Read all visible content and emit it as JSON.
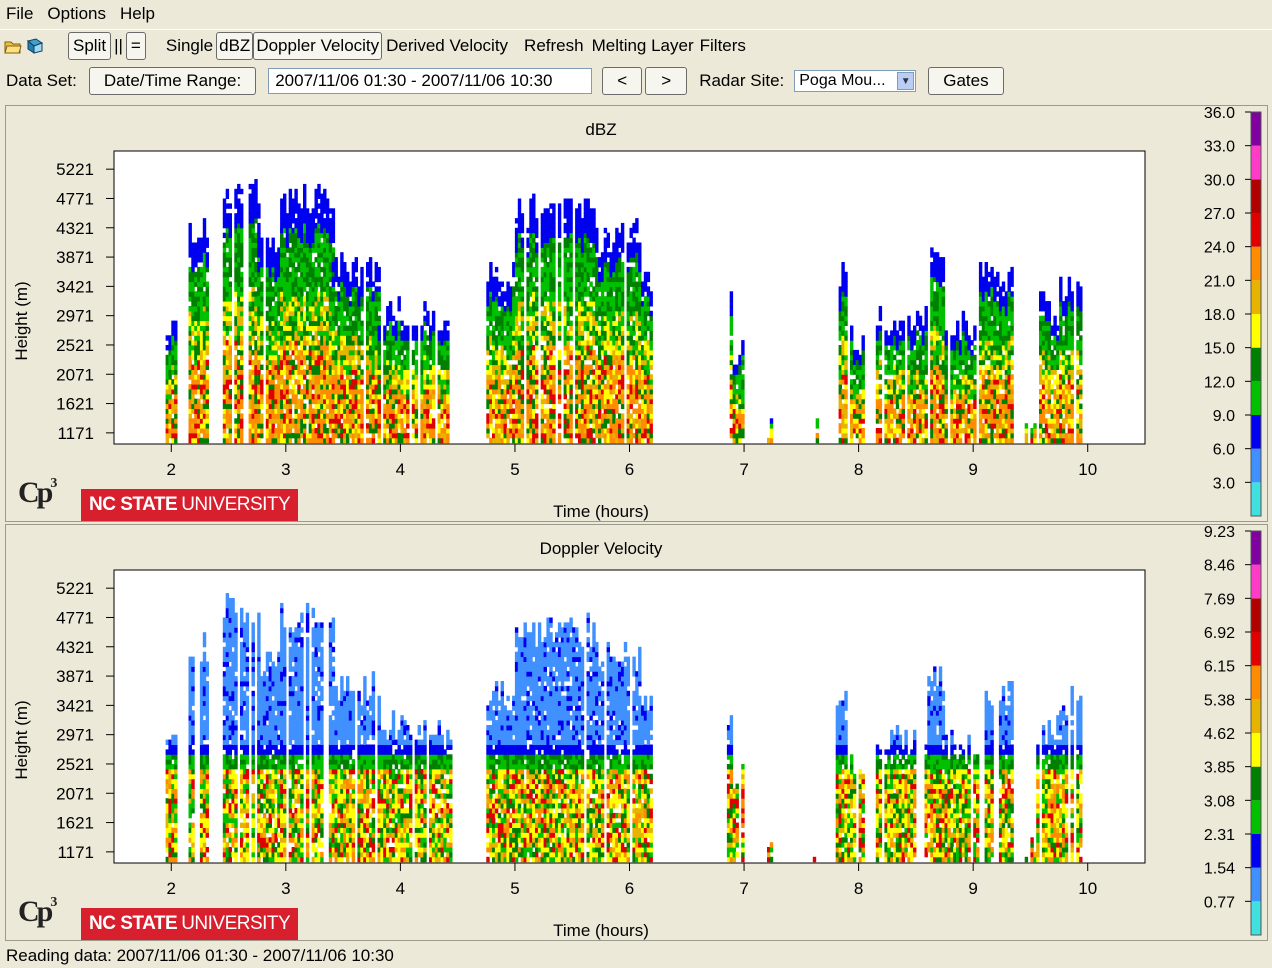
{
  "menu": [
    "File",
    "Options",
    "Help"
  ],
  "toolbar": {
    "split": "Split",
    "pause": "||",
    "equal": "=",
    "single": "Single",
    "dbz": "dBZ",
    "doppler": "Doppler Velocity",
    "derived": "Derived Velocity",
    "refresh": "Refresh",
    "melting": "Melting Layer",
    "filters": "Filters"
  },
  "dataset": {
    "label": "Data Set:",
    "range_button": "Date/Time Range:",
    "range_value": "2007/11/06 01:30 - 2007/11/06 10:30",
    "prev": "<",
    "next": ">",
    "radar_label": "Radar Site:",
    "radar_value": "Poga Mou...",
    "gates": "Gates"
  },
  "logos": {
    "cp": "Cp",
    "cp_sup": "3",
    "ncsu_bold": "NC STATE",
    "ncsu_rest": "UNIVERSITY"
  },
  "status": "Reading data: 2007/11/06 01:30 - 2007/11/06 10:30",
  "colors": {
    "scale": [
      "#40e0e0",
      "#4090ff",
      "#0000f0",
      "#00c000",
      "#008000",
      "#ffff00",
      "#e6b400",
      "#ff8c00",
      "#e00000",
      "#b00000",
      "#ff3cc8",
      "#8000a0"
    ]
  },
  "chart_data": [
    {
      "type": "heatmap",
      "title": "dBZ",
      "xlabel": "Time (hours)",
      "ylabel": "Height (m)",
      "xticks": [
        2,
        3,
        4,
        5,
        6,
        7,
        8,
        9,
        10
      ],
      "yticks": [
        1171,
        1621,
        2071,
        2521,
        2971,
        3421,
        3871,
        4321,
        4771,
        5221
      ],
      "xlim": [
        1.5,
        10.5
      ],
      "ylim": [
        1000,
        5500
      ],
      "colorbar": [
        "3.0",
        "6.0",
        "9.0",
        "12.0",
        "15.0",
        "18.0",
        "21.0",
        "24.0",
        "27.0",
        "30.0",
        "33.0",
        "36.0"
      ]
    },
    {
      "type": "heatmap",
      "title": "Doppler Velocity",
      "xlabel": "Time (hours)",
      "ylabel": "Height (m)",
      "xticks": [
        2,
        3,
        4,
        5,
        6,
        7,
        8,
        9,
        10
      ],
      "yticks": [
        1171,
        1621,
        2071,
        2521,
        2971,
        3421,
        3871,
        4321,
        4771,
        5221
      ],
      "xlim": [
        1.5,
        10.5
      ],
      "ylim": [
        1000,
        5500
      ],
      "colorbar": [
        "0.77",
        "1.54",
        "2.31",
        "3.08",
        "3.85",
        "4.62",
        "5.38",
        "6.15",
        "6.92",
        "7.69",
        "8.46",
        "9.23"
      ]
    }
  ]
}
